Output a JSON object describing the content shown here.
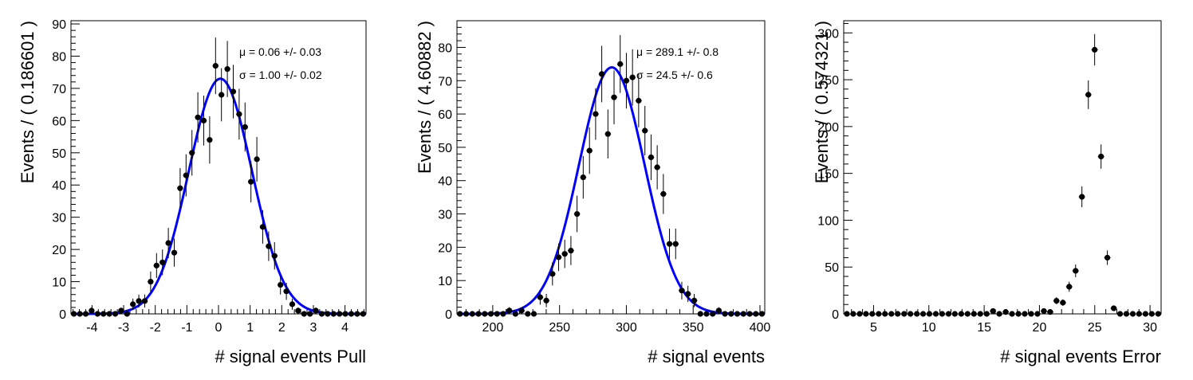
{
  "chart_data": [
    {
      "type": "scatter",
      "xlabel": "# signal events Pull",
      "ylabel": "Events / ( 0.186601 )",
      "xlim": [
        -4.66503,
        4.66503
      ],
      "ylim": [
        0,
        91
      ],
      "xticks": [
        -4,
        -3,
        -2,
        -1,
        0,
        1,
        2,
        3,
        4
      ],
      "yticks": [
        0,
        10,
        20,
        30,
        40,
        50,
        60,
        70,
        80,
        90
      ],
      "grid": false,
      "annotations": [
        "μ =  0.06 +/- 0.03",
        "σ =  1.00 +/- 0.02"
      ],
      "fit": {
        "type": "gaussian",
        "mean": 0.06,
        "sigma": 1.0,
        "amplitude": 73,
        "color": "#0000ff"
      },
      "marker_color": "#000000",
      "x": [
        -4.572,
        -4.385,
        -4.198,
        -4.012,
        -3.825,
        -3.639,
        -3.452,
        -3.265,
        -3.079,
        -2.892,
        -2.706,
        -2.519,
        -2.332,
        -2.146,
        -1.959,
        -1.772,
        -1.586,
        -1.399,
        -1.213,
        -1.026,
        -0.839,
        -0.653,
        -0.466,
        -0.28,
        -0.093,
        0.093,
        0.28,
        0.466,
        0.653,
        0.839,
        1.026,
        1.213,
        1.399,
        1.586,
        1.772,
        1.959,
        2.146,
        2.332,
        2.519,
        2.706,
        2.892,
        3.079,
        3.265,
        3.452,
        3.639,
        3.825,
        4.012,
        4.198,
        4.385,
        4.572
      ],
      "y": [
        0,
        0,
        0,
        1,
        0,
        0,
        0,
        0,
        1,
        0,
        3,
        4,
        4,
        10,
        15,
        16,
        22,
        19,
        39,
        43,
        50,
        61,
        60,
        54,
        77,
        68,
        76,
        69,
        62,
        58,
        41,
        48,
        27,
        21,
        18,
        9,
        7,
        3,
        1,
        0,
        0,
        1,
        0,
        0,
        0,
        0,
        0,
        0,
        0,
        0
      ]
    },
    {
      "type": "scatter",
      "xlabel": "# signal events",
      "ylabel": "Events / ( 4.60882 )",
      "xlim": [
        173.2,
        403.6
      ],
      "ylim": [
        0,
        88
      ],
      "xticks": [
        200,
        250,
        300,
        350,
        400
      ],
      "yticks": [
        0,
        10,
        20,
        30,
        40,
        50,
        60,
        70,
        80
      ],
      "grid": false,
      "annotations": [
        "μ =  289.1 +/- 0.8",
        "σ =  24.5 +/- 0.6"
      ],
      "fit": {
        "type": "gaussian",
        "mean": 289.1,
        "sigma": 24.5,
        "amplitude": 74,
        "color": "#0000ff"
      },
      "marker_color": "#000000",
      "x": [
        175.5,
        180.1,
        184.7,
        189.3,
        194.0,
        198.6,
        203.2,
        207.8,
        212.4,
        217.0,
        221.6,
        226.2,
        230.8,
        235.5,
        240.1,
        244.7,
        249.3,
        253.9,
        258.5,
        263.1,
        267.7,
        272.4,
        277.0,
        281.6,
        286.2,
        290.8,
        295.4,
        300.0,
        304.6,
        309.2,
        313.9,
        318.5,
        323.1,
        327.7,
        332.3,
        336.9,
        341.5,
        346.1,
        350.8,
        355.4,
        360.0,
        364.6,
        369.2,
        373.8,
        378.4,
        383.0,
        387.6,
        392.3,
        396.9,
        401.5
      ],
      "y": [
        0,
        0,
        0,
        0,
        0,
        0,
        0,
        0,
        1,
        0,
        1,
        0,
        0,
        5,
        4,
        12,
        17,
        18,
        19,
        30,
        41,
        49,
        60,
        72,
        54,
        65,
        75,
        70,
        71,
        64,
        55,
        47,
        44,
        36,
        21,
        21,
        7,
        6,
        4,
        0,
        0,
        0,
        1,
        0,
        0,
        0,
        0,
        0,
        0,
        0
      ]
    },
    {
      "type": "scatter",
      "xlabel": "# signal events Error",
      "ylabel": "Events / ( 0.574321 )",
      "xlim": [
        2.3,
        31.0
      ],
      "ylim": [
        0,
        313
      ],
      "xticks": [
        5,
        10,
        15,
        20,
        25,
        30
      ],
      "yticks": [
        0,
        50,
        100,
        150,
        200,
        250,
        300
      ],
      "grid": false,
      "marker_color": "#000000",
      "x": [
        2.59,
        3.16,
        3.74,
        4.31,
        4.88,
        5.46,
        6.03,
        6.61,
        7.18,
        7.76,
        8.33,
        8.91,
        9.48,
        10.05,
        10.63,
        11.2,
        11.78,
        12.35,
        12.93,
        13.5,
        14.08,
        14.65,
        15.23,
        15.8,
        16.37,
        16.95,
        17.52,
        18.1,
        18.67,
        19.25,
        19.82,
        20.4,
        20.97,
        21.54,
        22.12,
        22.69,
        23.27,
        23.84,
        24.42,
        24.99,
        25.57,
        26.14,
        26.72,
        27.29,
        27.86,
        28.44,
        29.01,
        29.59,
        30.16,
        30.74
      ],
      "y": [
        0,
        0,
        0,
        0,
        0,
        0,
        0,
        0,
        0,
        0,
        0,
        0,
        0,
        0,
        0,
        0,
        0,
        0,
        0,
        0,
        0,
        0,
        0,
        3,
        0,
        2,
        0,
        0,
        0,
        0,
        0,
        3,
        2,
        14,
        12,
        29,
        46,
        125,
        234,
        282,
        168,
        60,
        6,
        0,
        0,
        0,
        0,
        0,
        0,
        0
      ]
    }
  ]
}
